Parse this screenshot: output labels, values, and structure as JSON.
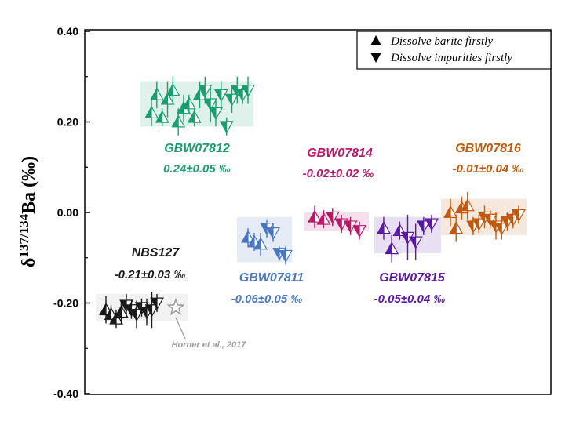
{
  "chart_data": {
    "type": "scatter",
    "ylabel": {
      "prefix": "δ",
      "superscript": "137/134",
      "suffix": "Ba (‰)"
    },
    "ylim": [
      -0.4,
      0.4
    ],
    "yticks": [
      "0.40",
      "0.20",
      "0.00",
      "-0.20",
      "-0.40"
    ],
    "ytick_values": [
      0.4,
      0.2,
      0.0,
      -0.2,
      -0.4
    ],
    "legend": {
      "position": "top-right",
      "entries": [
        {
          "label": "Dissolve barite firstly",
          "marker": "triangle-up"
        },
        {
          "label": "Dissolve impurities firstly",
          "marker": "triangle-down"
        }
      ]
    },
    "reference": {
      "label": "Horner et al., 2017",
      "value": -0.21,
      "marker": "star"
    },
    "samples": [
      {
        "name": "NBS127",
        "value_text": "-0.21±0.03 ‰",
        "color": "#1a1a1a",
        "mean": -0.21,
        "sd": 0.03,
        "points": [
          {
            "dir": "up",
            "y": -0.215,
            "err": 0.03
          },
          {
            "dir": "up",
            "y": -0.225,
            "err": 0.02
          },
          {
            "dir": "up",
            "y": -0.235,
            "err": 0.02
          },
          {
            "dir": "up",
            "y": -0.22,
            "err": 0.025
          },
          {
            "dir": "down",
            "y": -0.205,
            "err": 0.025
          },
          {
            "dir": "down",
            "y": -0.215,
            "err": 0.02
          },
          {
            "dir": "down",
            "y": -0.225,
            "err": 0.03
          },
          {
            "dir": "down",
            "y": -0.21,
            "err": 0.02
          },
          {
            "dir": "down",
            "y": -0.22,
            "err": 0.03
          },
          {
            "dir": "down",
            "y": -0.215,
            "err": 0.04
          },
          {
            "dir": "down",
            "y": -0.2,
            "err": 0.02
          }
        ]
      },
      {
        "name": "GBW07812",
        "value_text": "0.24±0.05 ‰",
        "color": "#1a9e6e",
        "mean": 0.24,
        "sd": 0.05,
        "points": [
          {
            "dir": "up",
            "y": 0.22,
            "err": 0.03
          },
          {
            "dir": "up",
            "y": 0.26,
            "err": 0.03
          },
          {
            "dir": "up",
            "y": 0.21,
            "err": 0.02
          },
          {
            "dir": "up",
            "y": 0.25,
            "err": 0.04
          },
          {
            "dir": "up",
            "y": 0.27,
            "err": 0.03
          },
          {
            "dir": "up",
            "y": 0.2,
            "err": 0.03
          },
          {
            "dir": "up",
            "y": 0.23,
            "err": 0.03
          },
          {
            "dir": "up",
            "y": 0.24,
            "err": 0.02
          },
          {
            "dir": "up",
            "y": 0.21,
            "err": 0.02
          },
          {
            "dir": "up",
            "y": 0.26,
            "err": 0.03
          },
          {
            "dir": "down",
            "y": 0.27,
            "err": 0.03
          },
          {
            "dir": "down",
            "y": 0.24,
            "err": 0.04
          },
          {
            "dir": "down",
            "y": 0.22,
            "err": 0.03
          },
          {
            "dir": "down",
            "y": 0.26,
            "err": 0.03
          },
          {
            "dir": "down",
            "y": 0.19,
            "err": 0.02
          },
          {
            "dir": "down",
            "y": 0.25,
            "err": 0.03
          },
          {
            "dir": "down",
            "y": 0.27,
            "err": 0.03
          },
          {
            "dir": "down",
            "y": 0.26,
            "err": 0.02
          },
          {
            "dir": "down",
            "y": 0.27,
            "err": 0.03
          }
        ]
      },
      {
        "name": "GBW07811",
        "value_text": "-0.06±0.05 ‰",
        "color": "#4a78c0",
        "mean": -0.06,
        "sd": 0.05,
        "points": [
          {
            "dir": "up",
            "y": -0.055,
            "err": 0.02
          },
          {
            "dir": "up",
            "y": -0.065,
            "err": 0.02
          },
          {
            "dir": "up",
            "y": -0.07,
            "err": 0.025
          },
          {
            "dir": "down",
            "y": -0.035,
            "err": 0.02
          },
          {
            "dir": "down",
            "y": -0.045,
            "err": 0.02
          },
          {
            "dir": "down",
            "y": -0.09,
            "err": 0.015
          },
          {
            "dir": "down",
            "y": -0.095,
            "err": 0.02
          }
        ]
      },
      {
        "name": "GBW07814",
        "value_text": "-0.02±0.02 ‰",
        "color": "#b81a6a",
        "mean": -0.02,
        "sd": 0.02,
        "points": [
          {
            "dir": "up",
            "y": -0.01,
            "err": 0.025
          },
          {
            "dir": "up",
            "y": -0.015,
            "err": 0.02
          },
          {
            "dir": "down",
            "y": -0.01,
            "err": 0.02
          },
          {
            "dir": "down",
            "y": -0.025,
            "err": 0.02
          },
          {
            "dir": "down",
            "y": -0.03,
            "err": 0.02
          },
          {
            "dir": "down",
            "y": -0.04,
            "err": 0.02
          }
        ]
      },
      {
        "name": "GBW07815",
        "value_text": "-0.05±0.04 ‰",
        "color": "#5a1aa0",
        "mean": -0.05,
        "sd": 0.04,
        "points": [
          {
            "dir": "up",
            "y": -0.035,
            "err": 0.025
          },
          {
            "dir": "up",
            "y": -0.08,
            "err": 0.03
          },
          {
            "dir": "up",
            "y": -0.04,
            "err": 0.02
          },
          {
            "dir": "down",
            "y": -0.055,
            "err": 0.05
          },
          {
            "dir": "down",
            "y": -0.065,
            "err": 0.04
          },
          {
            "dir": "down",
            "y": -0.03,
            "err": 0.02
          },
          {
            "dir": "down",
            "y": -0.025,
            "err": 0.02
          }
        ]
      },
      {
        "name": "GBW07816",
        "value_text": "-0.01±0.04 ‰",
        "color": "#c05a10",
        "mean": -0.01,
        "sd": 0.04,
        "points": [
          {
            "dir": "up",
            "y": 0.0,
            "err": 0.03
          },
          {
            "dir": "up",
            "y": -0.035,
            "err": 0.03
          },
          {
            "dir": "up",
            "y": 0.01,
            "err": 0.025
          },
          {
            "dir": "up",
            "y": 0.015,
            "err": 0.03
          },
          {
            "dir": "down",
            "y": -0.03,
            "err": 0.02
          },
          {
            "dir": "down",
            "y": -0.025,
            "err": 0.02
          },
          {
            "dir": "down",
            "y": -0.01,
            "err": 0.025
          },
          {
            "dir": "down",
            "y": -0.015,
            "err": 0.02
          },
          {
            "dir": "down",
            "y": -0.03,
            "err": 0.03
          },
          {
            "dir": "down",
            "y": -0.035,
            "err": 0.025
          },
          {
            "dir": "down",
            "y": -0.02,
            "err": 0.02
          },
          {
            "dir": "down",
            "y": -0.015,
            "err": 0.02
          },
          {
            "dir": "down",
            "y": -0.005,
            "err": 0.02
          }
        ]
      }
    ]
  }
}
